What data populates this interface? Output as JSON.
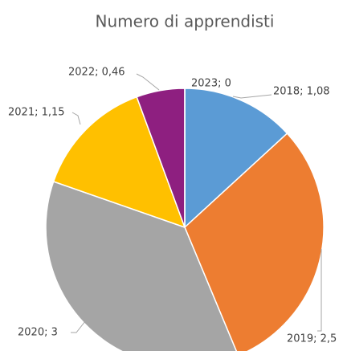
{
  "chart_data": {
    "type": "pie",
    "title": "Numero di apprendisti",
    "categories": [
      "2018",
      "2019",
      "2020",
      "2021",
      "2022",
      "2023"
    ],
    "values": [
      1.08,
      2.5,
      3,
      1.15,
      0.46,
      0
    ],
    "value_labels": [
      "2018; 1,08",
      "2019; 2,5",
      "2020; 3",
      "2021; 1,15",
      "2022; 0,46",
      "2023; 0"
    ],
    "colors": [
      "#5b9bd5",
      "#ed7d31",
      "#a5a5a5",
      "#ffc000",
      "#8e1f80",
      "#70ad47"
    ]
  }
}
